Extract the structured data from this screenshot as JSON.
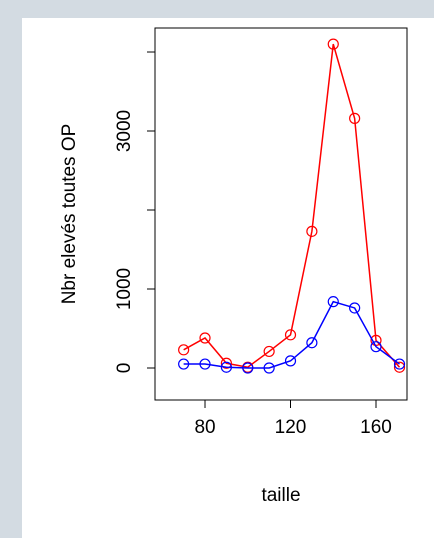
{
  "chart_data": {
    "type": "line",
    "x_label": "taille",
    "y_label": "Nbr elevés toutes OP",
    "x": [
      70,
      80,
      90,
      100,
      110,
      120,
      130,
      140,
      150,
      160,
      171
    ],
    "series": [
      {
        "color": "#ff0000",
        "values": [
          230,
          380,
          60,
          10,
          210,
          420,
          1730,
          4100,
          3160,
          350,
          10
        ]
      },
      {
        "color": "#0000ff",
        "values": [
          50,
          50,
          10,
          0,
          0,
          90,
          320,
          840,
          760,
          270,
          50
        ]
      }
    ],
    "xlim": [
      56.6,
      174.5
    ],
    "xticks": [
      80,
      120,
      160
    ],
    "ylim": [
      -405,
      4304
    ],
    "yticks": [
      0,
      1000,
      {
        "value": 2000,
        "label": null
      },
      3000,
      {
        "value": 4000,
        "label": null
      }
    ],
    "markers": "open-circle"
  }
}
